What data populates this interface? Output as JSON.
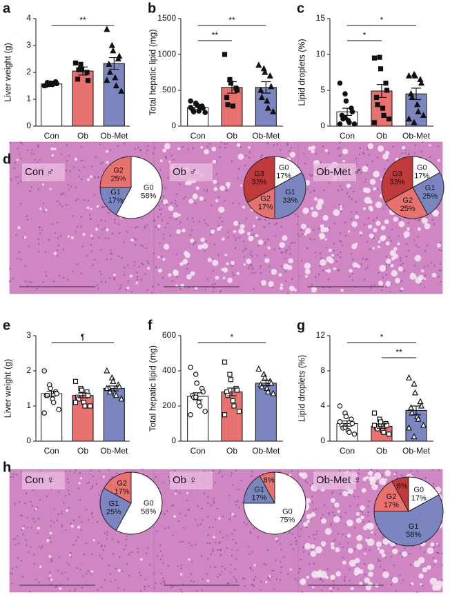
{
  "chart_data": [
    {
      "type": "bar",
      "panel": "a",
      "ylabel": "Liver weight (g)",
      "categories": [
        "Con",
        "Ob",
        "Ob-Met"
      ],
      "values": [
        1.57,
        2.05,
        2.33
      ],
      "errors": [
        0.04,
        0.15,
        0.22
      ],
      "colors": [
        "#ffffff",
        "#e8726f",
        "#7b86c0"
      ],
      "markers": [
        "circle",
        "square",
        "triangle"
      ],
      "marker_filled": true,
      "ylim": [
        0,
        4
      ],
      "yticks": [
        0,
        1,
        2,
        3,
        4
      ],
      "points": [
        [
          1.5,
          1.55,
          1.6,
          1.65,
          1.58,
          1.52,
          1.62,
          1.55,
          1.6
        ],
        [
          2.35,
          2.3,
          2.1,
          2.0,
          1.7,
          1.75,
          2.1
        ],
        [
          3.6,
          3.0,
          2.8,
          2.5,
          2.6,
          2.3,
          2.0,
          1.8,
          1.5,
          1.3,
          1.7
        ]
      ],
      "significance": [
        {
          "label": "**",
          "between": [
            "Con",
            "Ob-Met"
          ]
        }
      ]
    },
    {
      "type": "bar",
      "panel": "b",
      "ylabel": "Total hepatic lipid (mg)",
      "categories": [
        "Con",
        "Ob",
        "Ob-Met"
      ],
      "values": [
        260,
        540,
        540
      ],
      "errors": [
        30,
        80,
        80
      ],
      "colors": [
        "#ffffff",
        "#e8726f",
        "#7b86c0"
      ],
      "markers": [
        "circle",
        "square",
        "triangle"
      ],
      "marker_filled": true,
      "ylim": [
        0,
        1500
      ],
      "yticks": [
        0,
        500,
        1000,
        1500
      ],
      "points": [
        [
          350,
          320,
          300,
          280,
          250,
          230,
          200,
          210,
          270,
          190,
          260
        ],
        [
          1000,
          650,
          600,
          530,
          500,
          400,
          300,
          280
        ],
        [
          850,
          800,
          750,
          700,
          550,
          500,
          400,
          350,
          250,
          200
        ]
      ],
      "significance": [
        {
          "label": "**",
          "between": [
            "Con",
            "Ob"
          ]
        },
        {
          "label": "**",
          "between": [
            "Con",
            "Ob-Met"
          ]
        }
      ]
    },
    {
      "type": "bar",
      "panel": "c",
      "ylabel": "Lipid droplets (%)",
      "categories": [
        "Con",
        "Ob",
        "Ob-Met"
      ],
      "values": [
        2.0,
        4.9,
        4.5
      ],
      "errors": [
        0.5,
        0.9,
        0.8
      ],
      "colors": [
        "#ffffff",
        "#e8726f",
        "#7b86c0"
      ],
      "markers": [
        "circle",
        "square",
        "triangle"
      ],
      "marker_filled": true,
      "ylim": [
        0,
        15
      ],
      "yticks": [
        0,
        5,
        10,
        15
      ],
      "points": [
        [
          6,
          4.5,
          3.5,
          2.5,
          2,
          1.5,
          1,
          0.8,
          0.5,
          0.3,
          0.3,
          1.2
        ],
        [
          9.5,
          9.6,
          8,
          6,
          5,
          4,
          3,
          2.5,
          1.5,
          1,
          0.5
        ],
        [
          7,
          7.2,
          7,
          6.5,
          6,
          4.5,
          4,
          3,
          2,
          1.5,
          1,
          0.5
        ]
      ],
      "significance": [
        {
          "label": "*",
          "between": [
            "Con",
            "Ob"
          ]
        },
        {
          "label": "*",
          "between": [
            "Con",
            "Ob-Met"
          ]
        }
      ]
    },
    {
      "type": "pie",
      "panel": "d",
      "title": "Con ♂",
      "categories": [
        "G0",
        "G1",
        "G2"
      ],
      "values": [
        58,
        17,
        25
      ],
      "value_labels": [
        "58%",
        "17%",
        "25%"
      ],
      "colors": [
        "#ffffff",
        "#7b86c0",
        "#e8726f"
      ]
    },
    {
      "type": "pie",
      "title": "Ob ♂",
      "categories": [
        "G0",
        "G1",
        "G2",
        "G3"
      ],
      "values": [
        17,
        33,
        17,
        33
      ],
      "value_labels": [
        "17%",
        "33%",
        "17%",
        "33%"
      ],
      "colors": [
        "#ffffff",
        "#7b86c0",
        "#e8726f",
        "#c0393b"
      ]
    },
    {
      "type": "pie",
      "title": "Ob-Met ♂",
      "categories": [
        "G0",
        "G1",
        "G2",
        "G3"
      ],
      "values": [
        17,
        25,
        25,
        33
      ],
      "value_labels": [
        "17%",
        "25%",
        "25%",
        "33%"
      ],
      "colors": [
        "#ffffff",
        "#7b86c0",
        "#e8726f",
        "#c0393b"
      ]
    },
    {
      "type": "bar",
      "panel": "e",
      "ylabel": "Liver weight (g)",
      "categories": [
        "Con",
        "Ob",
        "Ob-Met"
      ],
      "values": [
        1.35,
        1.3,
        1.5
      ],
      "errors": [
        0.07,
        0.07,
        0.07
      ],
      "colors": [
        "#ffffff",
        "#e8726f",
        "#7b86c0"
      ],
      "markers": [
        "circle",
        "square",
        "triangle"
      ],
      "marker_filled": false,
      "ylim": [
        0,
        3
      ],
      "yticks": [
        0,
        1,
        2,
        3
      ],
      "points": [
        [
          2.0,
          1.6,
          1.5,
          1.4,
          1.35,
          1.3,
          1.3,
          1.2,
          1.1,
          0.9,
          0.8
        ],
        [
          1.7,
          1.5,
          1.45,
          1.4,
          1.3,
          1.25,
          1.2,
          1.1,
          1.0,
          1.0,
          1.1
        ],
        [
          2.0,
          1.8,
          1.7,
          1.6,
          1.55,
          1.5,
          1.4,
          1.35,
          1.3,
          1.2,
          1.5
        ]
      ],
      "significance": [
        {
          "label": "¶",
          "between": [
            "Con",
            "Ob-Met"
          ]
        }
      ]
    },
    {
      "type": "bar",
      "panel": "f",
      "ylabel": "Total hepatic lipid (mg)",
      "categories": [
        "Con",
        "Ob",
        "Ob-Met"
      ],
      "values": [
        255,
        280,
        330
      ],
      "errors": [
        20,
        22,
        15
      ],
      "colors": [
        "#ffffff",
        "#e8726f",
        "#7b86c0"
      ],
      "markers": [
        "circle",
        "square",
        "triangle"
      ],
      "marker_filled": false,
      "ylim": [
        0,
        600
      ],
      "yticks": [
        0,
        200,
        400,
        600
      ],
      "points": [
        [
          420,
          380,
          330,
          300,
          280,
          260,
          250,
          220,
          200,
          170,
          150,
          250
        ],
        [
          450,
          380,
          350,
          300,
          290,
          280,
          260,
          230,
          200,
          170,
          150
        ],
        [
          410,
          380,
          360,
          340,
          330,
          320,
          310,
          300,
          280,
          270
        ]
      ],
      "significance": [
        {
          "label": "*",
          "between": [
            "Con",
            "Ob-Met"
          ]
        }
      ]
    },
    {
      "type": "bar",
      "panel": "g",
      "ylabel": "Lipid droplets (%)",
      "categories": [
        "Con",
        "Ob",
        "Ob-Met"
      ],
      "values": [
        2.0,
        1.7,
        3.5
      ],
      "errors": [
        0.3,
        0.25,
        0.5
      ],
      "colors": [
        "#ffffff",
        "#e8726f",
        "#7b86c0"
      ],
      "markers": [
        "circle",
        "square",
        "triangle"
      ],
      "marker_filled": false,
      "ylim": [
        0,
        12
      ],
      "yticks": [
        0,
        4,
        8,
        12
      ],
      "points": [
        [
          4.0,
          3.2,
          2.8,
          2.5,
          2.0,
          1.8,
          1.5,
          1.2,
          1.0,
          0.8,
          2.2,
          1.6
        ],
        [
          3.2,
          2.5,
          2.2,
          2.0,
          1.8,
          1.6,
          1.4,
          1.2,
          1.0,
          0.8,
          1.8
        ],
        [
          7.2,
          6.5,
          5.5,
          4.5,
          4.0,
          3.8,
          3.2,
          2.8,
          2.5,
          1.8,
          1.5,
          0.5
        ]
      ],
      "significance": [
        {
          "label": "**",
          "between": [
            "Ob",
            "Ob-Met"
          ]
        },
        {
          "label": "*",
          "between": [
            "Con",
            "Ob-Met"
          ]
        }
      ]
    },
    {
      "type": "pie",
      "panel": "h",
      "title": "Con ♀",
      "categories": [
        "G0",
        "G1",
        "G2"
      ],
      "values": [
        58,
        25,
        17
      ],
      "value_labels": [
        "58%",
        "25%",
        "17%"
      ],
      "colors": [
        "#ffffff",
        "#7b86c0",
        "#e8726f"
      ]
    },
    {
      "type": "pie",
      "title": "Ob ♀",
      "categories": [
        "G0",
        "G1",
        null
      ],
      "values": [
        75,
        17,
        8
      ],
      "value_labels": [
        "75%",
        "17%",
        "8%"
      ],
      "colors": [
        "#ffffff",
        "#7b86c0",
        "#e8726f"
      ]
    },
    {
      "type": "pie",
      "title": "Ob-Met ♀",
      "categories": [
        "G0",
        "G1",
        "G2",
        null
      ],
      "values": [
        17,
        58,
        17,
        8
      ],
      "value_labels": [
        "17%",
        "58%",
        "17%",
        "8%"
      ],
      "colors": [
        "#ffffff",
        "#7b86c0",
        "#e8726f",
        "#c0393b"
      ]
    }
  ]
}
